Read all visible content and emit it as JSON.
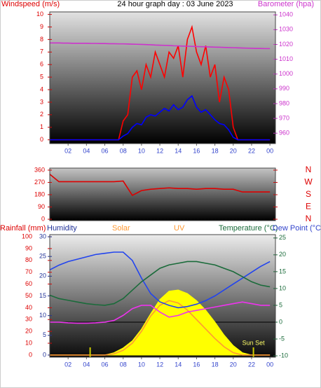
{
  "chart_data": [
    {
      "type": "line",
      "title": "24 hour graph day : 03 June 2023",
      "ylabel": "Windspeed (m/s)",
      "y2label": "Barometer (hpa)",
      "x": [
        0,
        0.5,
        1,
        1.5,
        2,
        2.5,
        3,
        3.5,
        4,
        4.5,
        5,
        5.5,
        6,
        6.5,
        7,
        7.5,
        8,
        8.5,
        9,
        9.5,
        10,
        10.5,
        11,
        11.5,
        12,
        12.5,
        13,
        13.5,
        14,
        14.5,
        15,
        15.5,
        16,
        16.5,
        17,
        17.5,
        18,
        18.5,
        19,
        19.5,
        20,
        20.5,
        21,
        21.5,
        22,
        22.5,
        23,
        23.5,
        24
      ],
      "xlim": [
        0,
        24.6
      ],
      "xticks": [
        {
          "value": 2,
          "label": "02"
        },
        {
          "value": 4,
          "label": "04"
        },
        {
          "value": 6,
          "label": "06"
        },
        {
          "value": 8,
          "label": "08"
        },
        10,
        12,
        14,
        16,
        18,
        20,
        22,
        {
          "value": 24,
          "label": "00"
        }
      ],
      "ylim": [
        -0.3,
        10.2
      ],
      "yticks": [
        0,
        1,
        2,
        3,
        4,
        5,
        6,
        7,
        8,
        9,
        10
      ],
      "y2lim": [
        953,
        1042
      ],
      "y2ticks": [
        960,
        970,
        980,
        990,
        1000,
        1010,
        1020,
        1030,
        1040
      ],
      "series": [
        {
          "color": "#ff0000",
          "values": [
            0,
            0,
            0,
            0,
            0,
            0,
            0,
            0,
            0,
            0,
            0,
            0,
            0,
            0,
            0,
            0,
            1.5,
            2,
            5,
            5.5,
            4,
            6,
            5,
            7,
            6,
            5,
            7,
            6.5,
            7.5,
            5,
            8,
            9,
            7,
            6,
            7.5,
            5,
            6,
            3,
            5,
            4,
            1,
            0,
            0,
            0,
            0,
            0,
            0,
            0,
            0
          ]
        },
        {
          "color": "#0000ff",
          "values": [
            0,
            0,
            0,
            0,
            0,
            0,
            0,
            0,
            0,
            0,
            0,
            0,
            0,
            0,
            0,
            0,
            0.3,
            0.5,
            1,
            1.3,
            1.2,
            1.8,
            2,
            1.9,
            2.2,
            2.5,
            2.3,
            2.8,
            2.4,
            2.6,
            3.2,
            3.5,
            2.6,
            2.2,
            2.4,
            2,
            1.6,
            1.3,
            1.2,
            0.8,
            0.2,
            0,
            0,
            0,
            0,
            0,
            0,
            0,
            0
          ]
        },
        {
          "color": "#cc33cc",
          "axis": "y2",
          "values": [
            1021.0,
            1021.0,
            1021.0,
            1020.9,
            1020.9,
            1020.8,
            1020.8,
            1020.8,
            1020.8,
            1020.7,
            1020.7,
            1020.6,
            1020.6,
            1020.5,
            1020.5,
            1020.4,
            1020.4,
            1020.3,
            1020.2,
            1020.1,
            1020.0,
            1019.9,
            1019.8,
            1019.6,
            1019.5,
            1019.4,
            1019.3,
            1019.1,
            1019.0,
            1018.9,
            1018.8,
            1018.7,
            1018.6,
            1018.5,
            1018.4,
            1018.3,
            1018.2,
            1018.1,
            1018.0,
            1017.9,
            1017.8,
            1017.7,
            1017.6,
            1017.5,
            1017.4,
            1017.3,
            1017.3,
            1017.2,
            1017.2
          ]
        }
      ]
    },
    {
      "type": "line",
      "x": [
        0,
        1,
        2,
        3,
        4,
        5,
        6,
        7,
        8,
        9,
        10,
        11,
        12,
        13,
        14,
        15,
        16,
        17,
        18,
        19,
        20,
        21,
        22,
        23,
        24
      ],
      "xlim": [
        0,
        24.6
      ],
      "ylim": [
        -10,
        375
      ],
      "yticks": [
        0,
        90,
        180,
        270,
        360
      ],
      "y2lim": [
        -10,
        375
      ],
      "y2ticks": [
        {
          "value": 0,
          "label": "N"
        },
        {
          "value": 90,
          "label": "E"
        },
        {
          "value": 180,
          "label": "S"
        },
        {
          "value": 270,
          "label": "W"
        },
        {
          "value": 360,
          "label": "N"
        }
      ],
      "series": [
        {
          "color": "#dd0000",
          "values": [
            330,
            275,
            275,
            275,
            275,
            275,
            275,
            275,
            280,
            175,
            210,
            220,
            225,
            230,
            225,
            225,
            220,
            225,
            225,
            220,
            220,
            200,
            200,
            200,
            200
          ]
        }
      ]
    },
    {
      "type": "line",
      "x": [
        0,
        1,
        2,
        3,
        4,
        5,
        6,
        7,
        8,
        9,
        10,
        11,
        12,
        13,
        14,
        15,
        16,
        17,
        18,
        19,
        20,
        21,
        22,
        23,
        24
      ],
      "xlim": [
        0,
        24.6
      ],
      "xticks": [
        {
          "value": 2,
          "label": "02"
        },
        {
          "value": 4,
          "label": "04"
        },
        {
          "value": 6,
          "label": "06"
        },
        {
          "value": 8,
          "label": "08"
        },
        10,
        12,
        14,
        16,
        18,
        20,
        22,
        {
          "value": 24,
          "label": "00"
        }
      ],
      "ylim": [
        -1.8,
        101.8
      ],
      "yticks": [
        0,
        10,
        20,
        30,
        40,
        50,
        60,
        70,
        80,
        90,
        100
      ],
      "y3label": "Rainfall (mm)",
      "y3lim": [
        -0.54,
        30.54
      ],
      "y3ticks": [
        0,
        5,
        10,
        15,
        20,
        25,
        30
      ],
      "y2lim": [
        -10.4,
        26
      ],
      "y2ticks": [
        -10,
        -5,
        0,
        5,
        10,
        15,
        20,
        25
      ],
      "zero_line": true,
      "sunrise": 4.4,
      "sunset": 22.2,
      "sunset_label": "Sun Set",
      "series": [
        {
          "name": "Solar",
          "color": "#ffff00",
          "kind": "area",
          "values": [
            0,
            0,
            0,
            0,
            0,
            0,
            0,
            2,
            6,
            12,
            22,
            35,
            47,
            54,
            55,
            52,
            46,
            38,
            28,
            17,
            8,
            2,
            0,
            0,
            0
          ]
        },
        {
          "name": "UV",
          "color": "#ff9933",
          "values": [
            0,
            0,
            0,
            0,
            0,
            0,
            0,
            1,
            4,
            10,
            20,
            33,
            42,
            46,
            44,
            38,
            30,
            22,
            14,
            7,
            2,
            0,
            0,
            0,
            0
          ]
        },
        {
          "name": "Humidity",
          "color": "#2244ee",
          "values": [
            72,
            76,
            79,
            81,
            83,
            85,
            86,
            87,
            87,
            80,
            65,
            52,
            45,
            42,
            40,
            41,
            43,
            46,
            50,
            55,
            60,
            65,
            70,
            75,
            79
          ]
        },
        {
          "name": "Temperature (°C)",
          "color": "#1a6b3a",
          "axis": "y2",
          "values": [
            8,
            7,
            6.5,
            6,
            5.5,
            5.2,
            5,
            5.5,
            7,
            9.5,
            12,
            14,
            16,
            17,
            17.5,
            18,
            18,
            17.5,
            17,
            16,
            15,
            13.5,
            12,
            11,
            10.5
          ]
        },
        {
          "name": "Dew Point (°C",
          "color": "#ee33ee",
          "axis": "y2",
          "values": [
            0,
            0,
            -0.2,
            -0.3,
            -0.3,
            -0.2,
            0,
            0.5,
            2,
            4,
            5,
            5,
            3,
            1.5,
            2,
            3,
            3.5,
            4,
            4.5,
            5,
            5.5,
            6,
            5.5,
            5,
            5
          ]
        }
      ]
    }
  ]
}
